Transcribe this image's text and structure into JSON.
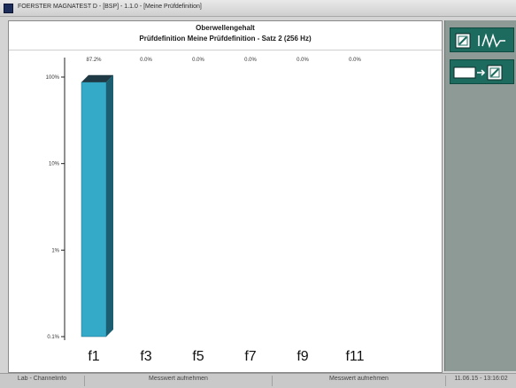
{
  "window": {
    "title": "FOERSTER MAGNATEST D - [BSP] - 1.1.0 - [Meine Prüfdefinition]"
  },
  "header": {
    "title": "Oberwellengehalt",
    "subtitle": "Prüfdefinition Meine Prüfdefinition - Satz 2 (256 Hz)"
  },
  "chart_data": {
    "type": "bar",
    "categories": [
      "f1",
      "f3",
      "f5",
      "f7",
      "f9",
      "f11"
    ],
    "values": [
      87.2,
      0.0,
      0.0,
      0.0,
      0.0,
      0.0
    ],
    "value_labels": [
      "87.2%",
      "0.0%",
      "0.0%",
      "0.0%",
      "0.0%",
      "0.0%"
    ],
    "y_scale": "log",
    "ylim": [
      0.1,
      100
    ],
    "yticks": [
      {
        "value": 100,
        "label": "100%"
      },
      {
        "value": 10,
        "label": "10%"
      },
      {
        "value": 1,
        "label": "1%"
      },
      {
        "value": 0.1,
        "label": "0.1%"
      }
    ],
    "title": "Oberwellengehalt",
    "xlabel": "",
    "ylabel": "",
    "colors": {
      "bar_front": "#35a9c8",
      "bar_side": "#1b5e72",
      "bar_top": "#1f3a44"
    }
  },
  "side_panel": {
    "buttons": [
      {
        "name": "mode-button",
        "icon": "signal-wave-icon"
      },
      {
        "name": "export-button",
        "icon": "transfer-arrow-icon"
      }
    ]
  },
  "statusbar": {
    "cells": [
      "Lab - Channelinfo",
      "Messwert aufnehmen",
      "Messwert aufnehmen",
      "11.06.15 - 13:16:02"
    ]
  }
}
